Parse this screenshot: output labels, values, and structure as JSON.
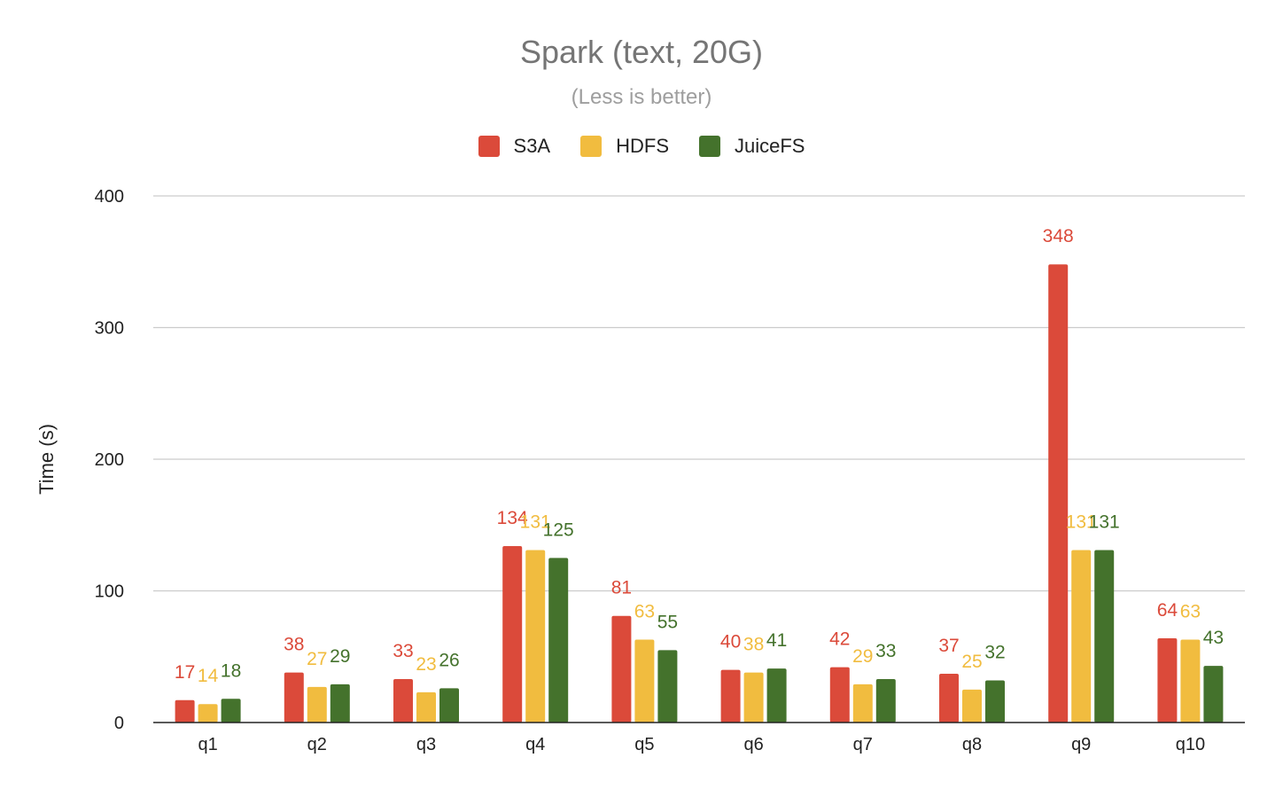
{
  "chart_data": {
    "type": "bar",
    "title": "Spark (text, 20G)",
    "subtitle": "(Less is better)",
    "ylabel": "Time (s)",
    "xlabel": "",
    "ylim": [
      0,
      400
    ],
    "yticks": [
      0,
      100,
      200,
      300,
      400
    ],
    "grid": true,
    "legend_position": "top",
    "categories": [
      "q1",
      "q2",
      "q3",
      "q4",
      "q5",
      "q6",
      "q7",
      "q8",
      "q9",
      "q10"
    ],
    "series": [
      {
        "name": "S3A",
        "color": "#db4a3a",
        "values": [
          17,
          38,
          33,
          134,
          81,
          40,
          42,
          37,
          348,
          64
        ],
        "labels": [
          "17",
          "38",
          "33",
          "134",
          "81",
          "40",
          "42",
          "37",
          "348",
          "64"
        ]
      },
      {
        "name": "HDFS",
        "color": "#f1bc3f",
        "values": [
          14,
          27,
          23,
          131,
          63,
          38,
          29,
          25,
          131,
          63
        ],
        "labels": [
          "14",
          "27",
          "23",
          "131",
          "63",
          "38",
          "29",
          "25",
          "131",
          "63"
        ]
      },
      {
        "name": "JuiceFS",
        "color": "#44722c",
        "values": [
          18,
          29,
          26,
          125,
          55,
          41,
          33,
          32,
          131,
          43
        ],
        "labels": [
          "18",
          "29",
          "26",
          "125",
          "55",
          "41",
          "33",
          "32",
          "131",
          "43"
        ]
      }
    ]
  }
}
